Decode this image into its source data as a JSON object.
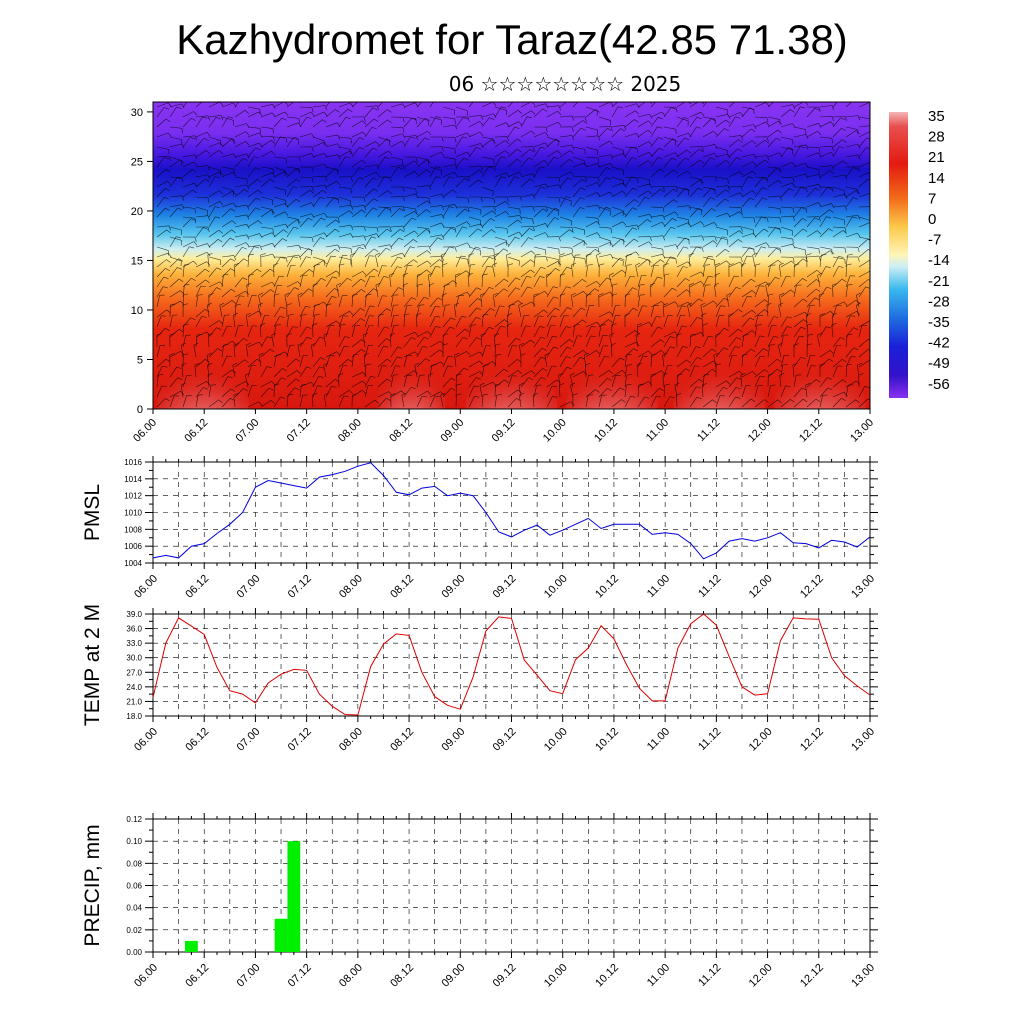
{
  "title": "Kazhydromet for Taraz(42.85 71.38)",
  "subtitle": "06 ☆☆☆☆☆☆☆☆ 2025",
  "colors": {
    "pmsl": "#0000dd",
    "temp": "#dd0000",
    "precip": "#00ee00"
  },
  "chart_data": [
    {
      "type": "heatmap",
      "description_of_field": "cross-section shading with wind barbs",
      "y_ticks": [
        "0",
        "5",
        "10",
        "15",
        "20",
        "25",
        "30"
      ],
      "ylim": [
        0,
        31
      ],
      "x_ticks": [
        "06.00",
        "06.12",
        "07.00",
        "07.12",
        "08.00",
        "08.12",
        "09.00",
        "09.12",
        "10.00",
        "10.12",
        "11.00",
        "11.12",
        "12.00",
        "12.12",
        "13.00"
      ],
      "colorbar_labels": [
        "35",
        "28",
        "21",
        "14",
        "7",
        "0",
        "-7",
        "-14",
        "-21",
        "-28",
        "-35",
        "-42",
        "-49",
        "-56"
      ]
    },
    {
      "type": "line",
      "ylabel": "PMSL",
      "ylim": [
        1004,
        1016
      ],
      "y_ticks": [
        "1016",
        "1014",
        "1012",
        "1010",
        "1008",
        "1006",
        "1004"
      ],
      "x_ticks": [
        "06.00",
        "06.12",
        "07.00",
        "07.12",
        "08.00",
        "08.12",
        "09.00",
        "09.12",
        "10.00",
        "10.12",
        "11.00",
        "11.12",
        "12.00",
        "12.12",
        "13.00"
      ],
      "x": [
        0,
        3,
        6,
        9,
        12,
        15,
        18,
        21,
        24,
        27,
        30,
        33,
        36,
        39,
        42,
        45,
        48,
        51,
        54,
        57,
        60,
        63,
        66,
        69,
        72,
        75,
        78,
        81,
        84,
        87,
        90,
        93,
        96,
        99,
        102,
        105,
        108,
        111,
        114,
        117,
        120,
        123,
        126,
        129,
        132,
        135,
        138,
        141,
        144,
        147,
        150,
        153,
        156,
        159,
        162,
        165,
        168
      ],
      "values": [
        1004.6,
        1004.9,
        1004.6,
        1006.0,
        1006.3,
        1007.5,
        1008.6,
        1010.0,
        1013.0,
        1013.8,
        1013.5,
        1013.2,
        1012.9,
        1014.2,
        1014.5,
        1014.9,
        1015.5,
        1015.9,
        1014.4,
        1012.4,
        1012.1,
        1012.9,
        1013.1,
        1012.0,
        1012.3,
        1012.0,
        1010.0,
        1007.7,
        1007.1,
        1007.9,
        1008.5,
        1007.3,
        1007.9,
        1008.6,
        1009.3,
        1008.1,
        1008.6,
        1008.6,
        1008.6,
        1007.4,
        1007.6,
        1007.4,
        1006.3,
        1004.5,
        1005.2,
        1006.6,
        1006.9,
        1006.6,
        1007.0,
        1007.6,
        1006.4,
        1006.3,
        1005.8,
        1006.7,
        1006.5,
        1005.9,
        1007.1
      ]
    },
    {
      "type": "line",
      "ylabel": "TEMP at 2 M",
      "ylim": [
        18,
        39
      ],
      "y_ticks": [
        "39.0",
        "36.0",
        "33.0",
        "30.0",
        "27.0",
        "24.0",
        "21.0",
        "18.0"
      ],
      "x_ticks": [
        "06.00",
        "06.12",
        "07.00",
        "07.12",
        "08.00",
        "08.12",
        "09.00",
        "09.12",
        "10.00",
        "10.12",
        "11.00",
        "11.12",
        "12.00",
        "12.12",
        "13.00"
      ],
      "x": [
        0,
        3,
        6,
        9,
        12,
        15,
        18,
        21,
        24,
        27,
        30,
        33,
        36,
        39,
        42,
        45,
        48,
        51,
        54,
        57,
        60,
        63,
        66,
        69,
        72,
        75,
        78,
        81,
        84,
        87,
        90,
        93,
        96,
        99,
        102,
        105,
        108,
        111,
        114,
        117,
        120,
        123,
        126,
        129,
        132,
        135,
        138,
        141,
        144,
        147,
        150,
        153,
        156,
        159,
        162,
        165,
        168
      ],
      "values": [
        21.8,
        33.0,
        38.2,
        36.5,
        34.8,
        28.0,
        23.2,
        22.5,
        20.7,
        24.8,
        26.6,
        27.6,
        27.4,
        22.5,
        20.0,
        18.3,
        18.2,
        28.2,
        32.8,
        34.9,
        34.6,
        27.0,
        22.0,
        20.2,
        19.4,
        26.0,
        35.5,
        38.4,
        38.1,
        29.5,
        26.4,
        23.2,
        22.6,
        29.6,
        32.0,
        36.6,
        33.9,
        28.5,
        23.7,
        21.1,
        21.1,
        32.0,
        37.0,
        39.0,
        36.7,
        30.2,
        24.0,
        22.3,
        22.6,
        33.5,
        38.2,
        38.0,
        37.9,
        30.0,
        26.3,
        24.2,
        22.3
      ]
    },
    {
      "type": "bar",
      "ylabel": "PRECIP, mm",
      "ylim": [
        0,
        0.12
      ],
      "y_ticks": [
        "0.12",
        "0.10",
        "0.08",
        "0.06",
        "0.04",
        "0.02",
        "0.00"
      ],
      "x_ticks": [
        "06.00",
        "06.12",
        "07.00",
        "07.12",
        "08.00",
        "08.12",
        "09.00",
        "09.12",
        "10.00",
        "10.12",
        "11.00",
        "11.12",
        "12.00",
        "12.12",
        "13.00"
      ],
      "bars": [
        {
          "x": 9,
          "value": 0.01
        },
        {
          "x": 30,
          "value": 0.03
        },
        {
          "x": 33,
          "value": 0.1
        }
      ]
    }
  ]
}
